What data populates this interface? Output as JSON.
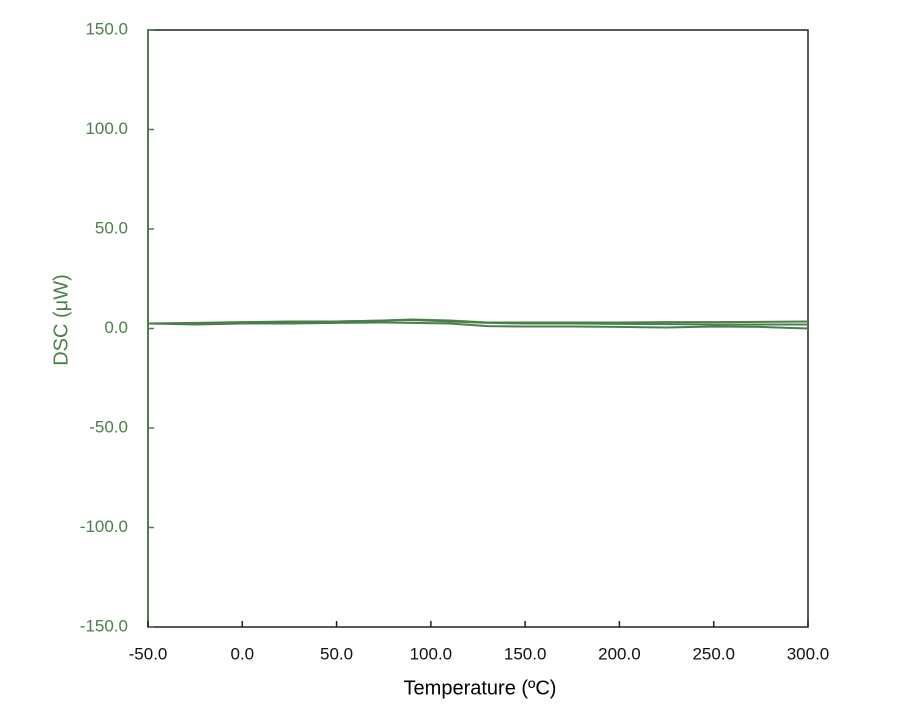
{
  "chart_data": {
    "type": "line",
    "x_label": "Temperature (ºC)",
    "y_label": "DSC (μW)",
    "x": [
      -50,
      -25,
      0,
      25,
      50,
      75,
      90,
      110,
      130,
      150,
      175,
      200,
      225,
      250,
      275,
      300
    ],
    "series": [
      {
        "color": "#4a7f4a",
        "values": [
          2.5,
          2.8,
          3.2,
          3.5,
          3.5,
          4.0,
          4.5,
          4.0,
          3.0,
          3.0,
          3.0,
          3.0,
          3.2,
          3.2,
          3.3,
          3.5
        ]
      },
      {
        "color": "#4a7f4a",
        "values": [
          2.5,
          2.5,
          3.0,
          3.3,
          3.5,
          4.0,
          4.3,
          3.5,
          2.8,
          2.5,
          2.5,
          2.3,
          2.2,
          2.0,
          2.0,
          2.0
        ]
      },
      {
        "color": "#4a7f4a",
        "values": [
          2.5,
          2.0,
          2.5,
          2.5,
          2.8,
          3.0,
          2.8,
          2.5,
          1.2,
          1.0,
          1.0,
          0.8,
          0.5,
          1.0,
          0.8,
          0.0
        ]
      }
    ],
    "xlim": [
      -50,
      300
    ],
    "ylim": [
      -150,
      150
    ],
    "xticks": [
      {
        "value": -50,
        "label": "-50.0"
      },
      {
        "value": 0,
        "label": "0.0"
      },
      {
        "value": 50,
        "label": "50.0"
      },
      {
        "value": 100,
        "label": "100.0"
      },
      {
        "value": 150,
        "label": "150.0"
      },
      {
        "value": 200,
        "label": "200.0"
      },
      {
        "value": 250,
        "label": "250.0"
      },
      {
        "value": 300,
        "label": "300.0"
      }
    ],
    "yticks": [
      {
        "value": -150,
        "label": "-150.0"
      },
      {
        "value": -100,
        "label": "-100.0"
      },
      {
        "value": -50,
        "label": "-50.0"
      },
      {
        "value": 0,
        "label": "0.0"
      },
      {
        "value": 50,
        "label": "50.0"
      },
      {
        "value": 100,
        "label": "100.0"
      },
      {
        "value": 150,
        "label": "150.0"
      }
    ],
    "y_axis_color": "#4a7f4a",
    "grid": false
  }
}
